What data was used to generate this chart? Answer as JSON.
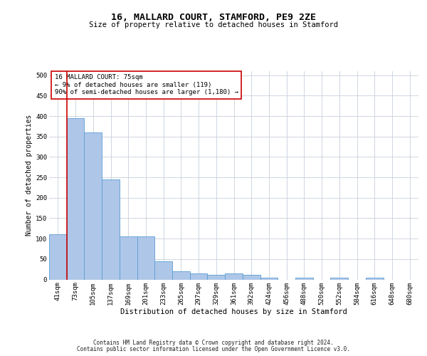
{
  "title": "16, MALLARD COURT, STAMFORD, PE9 2ZE",
  "subtitle": "Size of property relative to detached houses in Stamford",
  "xlabel": "Distribution of detached houses by size in Stamford",
  "ylabel": "Number of detached properties",
  "categories": [
    "41sqm",
    "73sqm",
    "105sqm",
    "137sqm",
    "169sqm",
    "201sqm",
    "233sqm",
    "265sqm",
    "297sqm",
    "329sqm",
    "361sqm",
    "392sqm",
    "424sqm",
    "456sqm",
    "488sqm",
    "520sqm",
    "552sqm",
    "584sqm",
    "616sqm",
    "648sqm",
    "680sqm"
  ],
  "values": [
    110,
    395,
    360,
    245,
    105,
    105,
    45,
    20,
    15,
    12,
    15,
    12,
    5,
    0,
    5,
    0,
    5,
    0,
    5,
    0,
    0
  ],
  "bar_color": "#aec6e8",
  "bar_edge_color": "#5a9fd4",
  "vline_color": "#cc0000",
  "vline_x_index": 0.5,
  "annotation_text": "16 MALLARD COURT: 75sqm\n← 9% of detached houses are smaller (119)\n90% of semi-detached houses are larger (1,180) →",
  "annotation_box_color": "#ffffff",
  "annotation_box_edge_color": "#cc0000",
  "ylim": [
    0,
    510
  ],
  "yticks": [
    0,
    50,
    100,
    150,
    200,
    250,
    300,
    350,
    400,
    450,
    500
  ],
  "background_color": "#ffffff",
  "grid_color": "#c8d0dc",
  "footer_line1": "Contains HM Land Registry data © Crown copyright and database right 2024.",
  "footer_line2": "Contains public sector information licensed under the Open Government Licence v3.0.",
  "title_fontsize": 9.5,
  "subtitle_fontsize": 7.5,
  "ylabel_fontsize": 7,
  "xlabel_fontsize": 7.5,
  "tick_fontsize": 6.5,
  "annotation_fontsize": 6.5,
  "footer_fontsize": 5.5
}
